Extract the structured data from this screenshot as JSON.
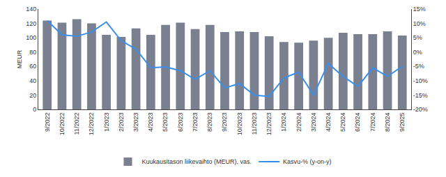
{
  "chart_data": {
    "type": "bar",
    "categories": [
      "9/2022",
      "10/2022",
      "11/2022",
      "12/2022",
      "1/2023",
      "2/2023",
      "3/2023",
      "4/2023",
      "5/2023",
      "6/2023",
      "7/2023",
      "8/2023",
      "9/2023",
      "10/2023",
      "11/2023",
      "12/2023",
      "1/2024",
      "2/2024",
      "3/2024",
      "4/2024",
      "5/2024",
      "6/2024",
      "7/2024",
      "8/2024",
      "9/2025"
    ],
    "y_label": "MEUR",
    "series": [
      {
        "name": "Kuukausitason liikevaihto (MEUR), vas.",
        "type": "bar",
        "color": "#7b8091",
        "values": [
          124,
          121,
          126,
          120,
          104,
          101,
          113,
          104,
          118,
          121,
          112,
          118,
          108,
          109,
          108,
          102,
          94,
          93,
          96,
          100,
          107,
          105,
          105,
          109,
          103
        ]
      },
      {
        "name": "Kasvu-% (y-on-y)",
        "type": "line",
        "axis": "y2",
        "color": "#3a8ee8",
        "values": [
          11,
          6,
          5.5,
          7,
          10.5,
          4,
          1,
          -5.5,
          -5.2,
          -6.5,
          -9.5,
          -6.5,
          -12.5,
          -11,
          -15,
          -15.5,
          -9,
          -7,
          -15,
          -4,
          -8.5,
          -12,
          -5.5,
          -8.5,
          -5
        ]
      }
    ],
    "ylim": [
      0,
      140
    ],
    "yticks": [
      0,
      20,
      40,
      60,
      80,
      100,
      120,
      140
    ],
    "y2lim": [
      -20,
      15
    ],
    "y2ticks": [
      {
        "value": -20,
        "label": "-20%"
      },
      {
        "value": -15,
        "label": "-15%"
      },
      {
        "value": -10,
        "label": "-10%"
      },
      {
        "value": -5,
        "label": "-5%"
      },
      {
        "value": 0,
        "label": "0%"
      },
      {
        "value": 5,
        "label": "5%"
      },
      {
        "value": 10,
        "label": "10%"
      },
      {
        "value": 15,
        "label": "15%"
      }
    ],
    "grid": false,
    "legend": "bottom"
  }
}
